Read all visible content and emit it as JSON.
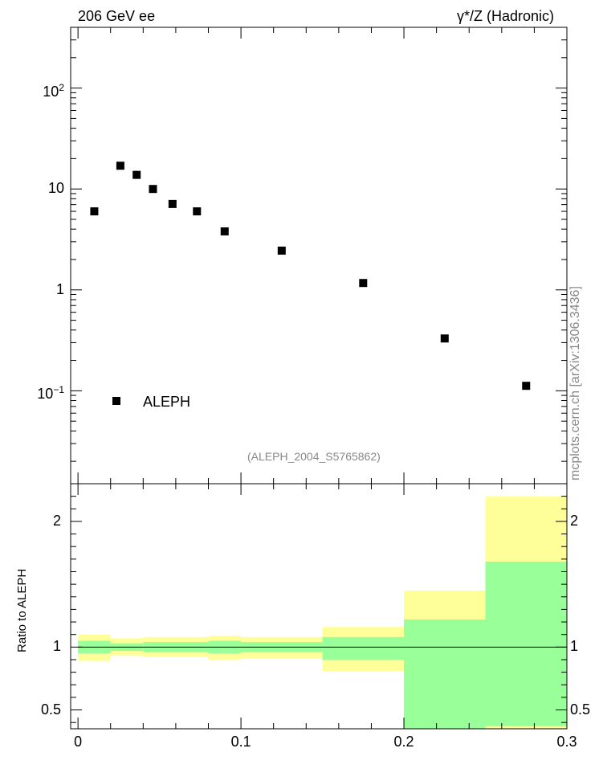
{
  "header": {
    "left_title": "206 GeV ee",
    "right_title": "γ*/Z (Hadronic)"
  },
  "side_label": "mcplots.cern.ch [arXiv:1306.3436]",
  "analysis_label": "(ALEPH_2004_S5765862)",
  "chart_data": [
    {
      "type": "scatter",
      "scale": "log",
      "xlim": [
        -0.0045,
        0.3
      ],
      "ylim": [
        0.012,
        400
      ],
      "yticks": [
        {
          "value": 100,
          "mantissa": "10",
          "exp": "2"
        },
        {
          "value": 10,
          "mantissa": "10",
          "exp": ""
        },
        {
          "value": 1,
          "mantissa": "1",
          "exp": ""
        },
        {
          "value": 0.1,
          "mantissa": "10",
          "exp": "−1"
        }
      ],
      "series": [
        {
          "name": "ALEPH",
          "x": [
            0.01,
            0.026,
            0.036,
            0.046,
            0.058,
            0.073,
            0.09,
            0.125,
            0.175,
            0.225,
            0.275
          ],
          "y": [
            6.0,
            17.0,
            13.8,
            10.0,
            7.1,
            6.0,
            3.8,
            2.45,
            1.17,
            0.33,
            0.112
          ]
        }
      ],
      "legend_position": "bottom-left",
      "grid": false
    },
    {
      "type": "area",
      "ylabel": "Ratio to ALEPH",
      "xlim": [
        -0.0045,
        0.3
      ],
      "ylim": [
        0.35,
        2.3
      ],
      "yticks": [
        "0.5",
        "1",
        "2"
      ],
      "ytick_values": [
        0.5,
        1,
        2
      ],
      "xticks": [
        "0",
        "0.1",
        "0.2",
        "0.3"
      ],
      "xtick_values": [
        0,
        0.1,
        0.2,
        0.3
      ],
      "reference": 1,
      "bins": [
        {
          "x0": 0.0,
          "x1": 0.02,
          "stat_lo": 0.95,
          "stat_hi": 1.05,
          "tot_lo": 0.89,
          "tot_hi": 1.1
        },
        {
          "x0": 0.02,
          "x1": 0.04,
          "stat_lo": 0.97,
          "stat_hi": 1.03,
          "tot_lo": 0.93,
          "tot_hi": 1.07
        },
        {
          "x0": 0.04,
          "x1": 0.08,
          "stat_lo": 0.96,
          "stat_hi": 1.04,
          "tot_lo": 0.92,
          "tot_hi": 1.08
        },
        {
          "x0": 0.08,
          "x1": 0.1,
          "stat_lo": 0.95,
          "stat_hi": 1.05,
          "tot_lo": 0.9,
          "tot_hi": 1.09
        },
        {
          "x0": 0.1,
          "x1": 0.15,
          "stat_lo": 0.96,
          "stat_hi": 1.04,
          "tot_lo": 0.91,
          "tot_hi": 1.08
        },
        {
          "x0": 0.15,
          "x1": 0.2,
          "stat_lo": 0.9,
          "stat_hi": 1.08,
          "tot_lo": 0.81,
          "tot_hi": 1.16
        },
        {
          "x0": 0.2,
          "x1": 0.25,
          "stat_lo": 0.35,
          "stat_hi": 1.22,
          "tot_lo": 0.35,
          "tot_hi": 1.45
        },
        {
          "x0": 0.25,
          "x1": 0.3,
          "stat_lo": 0.37,
          "stat_hi": 1.68,
          "tot_lo": 0.35,
          "tot_hi": 2.2
        }
      ],
      "colors": {
        "stat": "#99ff99",
        "total": "#ffff99",
        "reference": "#000000"
      }
    }
  ]
}
